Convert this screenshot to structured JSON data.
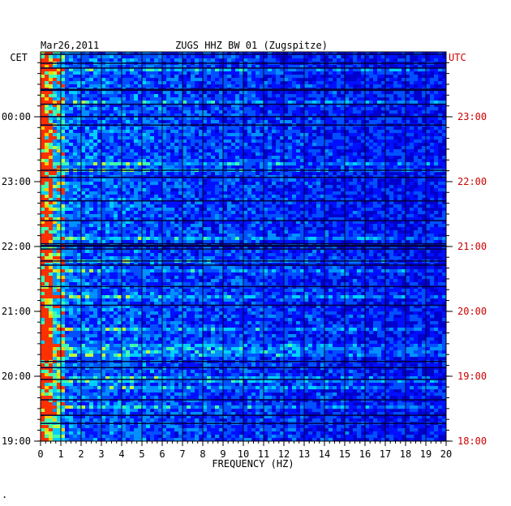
{
  "header": {
    "date": "Mar26,2011",
    "station": "ZUGS HHZ BW 01 (Zugspitze)"
  },
  "chart_data": {
    "type": "heatmap",
    "title": "ZUGS HHZ BW 01 (Zugspitze)",
    "date": "Mar26,2011",
    "xlabel": "FREQUENCY (HZ)",
    "x_ticks": [
      "0",
      "1",
      "2",
      "3",
      "4",
      "5",
      "6",
      "7",
      "8",
      "9",
      "10",
      "11",
      "12",
      "13",
      "14",
      "15",
      "16",
      "17",
      "18",
      "19",
      "20"
    ],
    "xlim": [
      0,
      20
    ],
    "left_axis": {
      "label": "CET",
      "ticks": [
        "00:00",
        "23:00",
        "22:00",
        "21:00",
        "20:00",
        "19:00"
      ]
    },
    "right_axis": {
      "label": "UTC",
      "ticks": [
        "23:00",
        "22:00",
        "21:00",
        "20:00",
        "19:00",
        "18:00"
      ]
    },
    "colors": {
      "left_axis_text": "#000000",
      "right_axis_text": "#cc0000",
      "background_field": "#0000cc",
      "hot": "#ff2000"
    }
  },
  "footer": {
    "mark": "."
  }
}
